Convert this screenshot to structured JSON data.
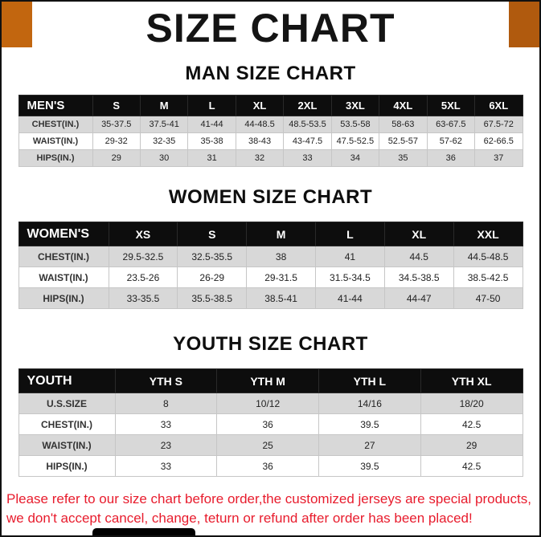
{
  "page": {
    "title": "SIZE CHART",
    "footer_line1": "Please refer to our size chart before order,the customized jerseys are special products,",
    "footer_line2": "we don't accept cancel, change, teturn or refund after order has been placed!"
  },
  "colors": {
    "corner_left": "#c2660f",
    "corner_right": "#b05a0e",
    "table_header_bg": "#0d0d0d",
    "row_alt": "#d8d8d8",
    "footer_red": "#e81c2d",
    "frame": "#111111"
  },
  "sections": [
    {
      "heading": "MAN SIZE CHART",
      "table": {
        "header": [
          "MEN'S",
          "S",
          "M",
          "L",
          "XL",
          "2XL",
          "3XL",
          "4XL",
          "5XL",
          "6XL"
        ],
        "rows": [
          [
            "CHEST(IN.)",
            "35-37.5",
            "37.5-41",
            "41-44",
            "44-48.5",
            "48.5-53.5",
            "53.5-58",
            "58-63",
            "63-67.5",
            "67.5-72"
          ],
          [
            "WAIST(IN.)",
            "29-32",
            "32-35",
            "35-38",
            "38-43",
            "43-47.5",
            "47.5-52.5",
            "52.5-57",
            "57-62",
            "62-66.5"
          ],
          [
            "HIPS(IN.)",
            "29",
            "30",
            "31",
            "32",
            "33",
            "34",
            "35",
            "36",
            "37"
          ]
        ]
      }
    },
    {
      "heading": "WOMEN SIZE CHART",
      "table": {
        "header": [
          "WOMEN'S",
          "XS",
          "S",
          "M",
          "L",
          "XL",
          "XXL"
        ],
        "rows": [
          [
            "CHEST(IN.)",
            "29.5-32.5",
            "32.5-35.5",
            "38",
            "41",
            "44.5",
            "44.5-48.5"
          ],
          [
            "WAIST(IN.)",
            "23.5-26",
            "26-29",
            "29-31.5",
            "31.5-34.5",
            "34.5-38.5",
            "38.5-42.5"
          ],
          [
            "HIPS(IN.)",
            "33-35.5",
            "35.5-38.5",
            "38.5-41",
            "41-44",
            "44-47",
            "47-50"
          ]
        ]
      }
    },
    {
      "heading": "YOUTH SIZE CHART",
      "table": {
        "header": [
          "YOUTH",
          "YTH S",
          "YTH M",
          "YTH L",
          "YTH XL"
        ],
        "rows": [
          [
            "U.S.SIZE",
            "8",
            "10/12",
            "14/16",
            "18/20"
          ],
          [
            "CHEST(IN.)",
            "33",
            "36",
            "39.5",
            "42.5"
          ],
          [
            "WAIST(IN.)",
            "23",
            "25",
            "27",
            "29"
          ],
          [
            "HIPS(IN.)",
            "33",
            "36",
            "39.5",
            "42.5"
          ]
        ]
      }
    }
  ]
}
